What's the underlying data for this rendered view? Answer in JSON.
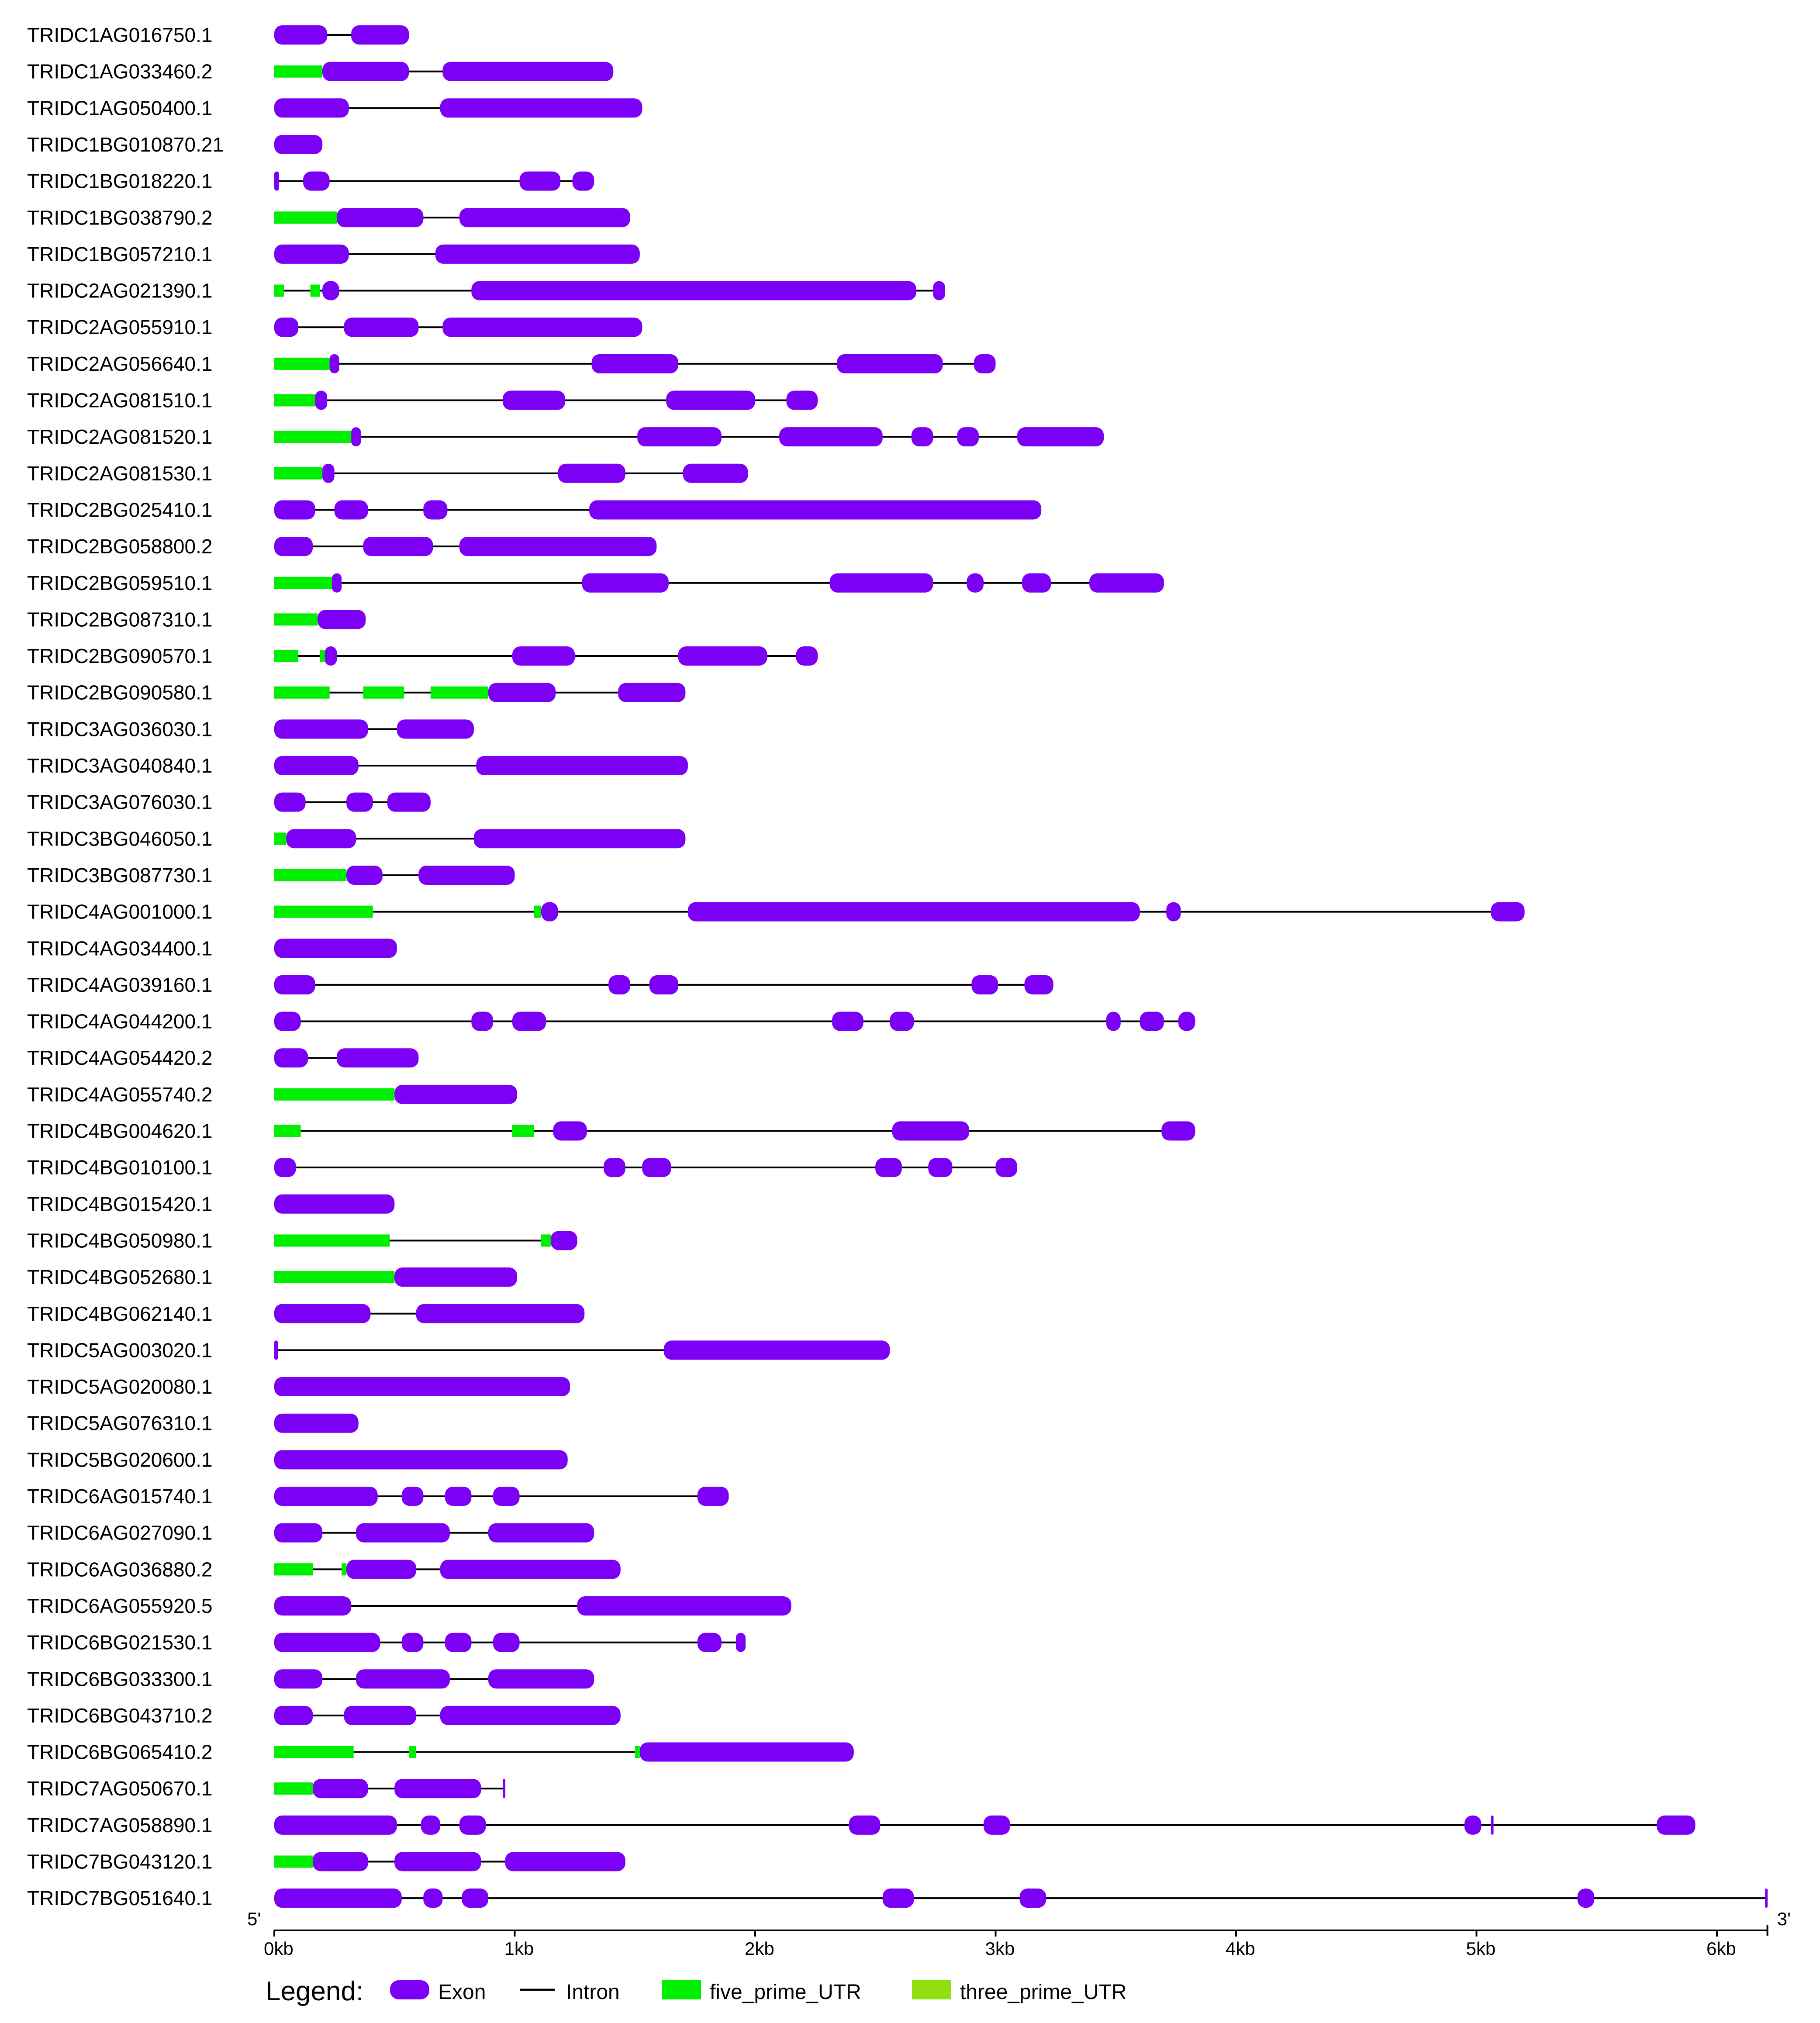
{
  "colors": {
    "exon": "#7b00f5",
    "intron": "#000000",
    "five_prime_UTR": "#00ee00",
    "three_prime_UTR": "#90e010"
  },
  "axis": {
    "five_end": "5'",
    "three_end": "3'",
    "ticks": [
      {
        "value": 0,
        "label": "0kb"
      },
      {
        "value": 1000,
        "label": "1kb"
      },
      {
        "value": 2000,
        "label": "2kb"
      },
      {
        "value": 3000,
        "label": "3kb"
      },
      {
        "value": 4000,
        "label": "4kb"
      },
      {
        "value": 5000,
        "label": "5kb"
      },
      {
        "value": 6000,
        "label": "6kb"
      }
    ],
    "max": 6210
  },
  "legend": {
    "title": "Legend:",
    "exon": "Exon",
    "intron": "Intron",
    "five_prime_UTR": "five_prime_UTR",
    "three_prime_UTR": "three_prime_UTR"
  },
  "genes": [
    {
      "name": "TRIDC1AG016750.1",
      "length": 560,
      "exons": [
        [
          0,
          220
        ],
        [
          320,
          560
        ]
      ],
      "utr5": []
    },
    {
      "name": "TRIDC1AG033460.2",
      "length": 1410,
      "exons": [
        [
          200,
          560
        ],
        [
          700,
          1410
        ]
      ],
      "utr5": [
        [
          0,
          200
        ]
      ]
    },
    {
      "name": "TRIDC1AG050400.1",
      "length": 1530,
      "exons": [
        [
          0,
          310
        ],
        [
          690,
          1530
        ]
      ],
      "utr5": []
    },
    {
      "name": "TRIDC1BG010870.21",
      "length": 200,
      "exons": [
        [
          0,
          200
        ]
      ],
      "utr5": []
    },
    {
      "name": "TRIDC1BG018220.1",
      "length": 1330,
      "exons": [
        [
          0,
          20
        ],
        [
          120,
          230
        ],
        [
          1020,
          1190
        ],
        [
          1240,
          1330
        ]
      ],
      "utr5": []
    },
    {
      "name": "TRIDC1BG038790.2",
      "length": 1480,
      "exons": [
        [
          260,
          620
        ],
        [
          770,
          1480
        ]
      ],
      "utr5": [
        [
          0,
          260
        ]
      ]
    },
    {
      "name": "TRIDC1BG057210.1",
      "length": 1520,
      "exons": [
        [
          0,
          310
        ],
        [
          670,
          1520
        ]
      ],
      "utr5": []
    },
    {
      "name": "TRIDC2AG021390.1",
      "length": 2790,
      "exons": [
        [
          200,
          270
        ],
        [
          820,
          2670
        ],
        [
          2740,
          2790
        ]
      ],
      "utr5": [
        [
          0,
          40
        ],
        [
          150,
          190
        ]
      ]
    },
    {
      "name": "TRIDC2AG055910.1",
      "length": 1530,
      "exons": [
        [
          0,
          100
        ],
        [
          290,
          600
        ],
        [
          700,
          1530
        ]
      ],
      "utr5": []
    },
    {
      "name": "TRIDC2AG056640.1",
      "length": 3000,
      "exons": [
        [
          230,
          270
        ],
        [
          1320,
          1680
        ],
        [
          2340,
          2780
        ],
        [
          2910,
          3000
        ]
      ],
      "utr5": [
        [
          0,
          230
        ]
      ]
    },
    {
      "name": "TRIDC2AG081510.1",
      "length": 2260,
      "exons": [
        [
          170,
          220
        ],
        [
          950,
          1210
        ],
        [
          1630,
          2000
        ],
        [
          2130,
          2260
        ]
      ],
      "utr5": [
        [
          0,
          170
        ]
      ]
    },
    {
      "name": "TRIDC2AG081520.1",
      "length": 3450,
      "exons": [
        [
          320,
          360
        ],
        [
          1510,
          1860
        ],
        [
          2100,
          2530
        ],
        [
          2650,
          2740
        ],
        [
          2840,
          2930
        ],
        [
          3090,
          3450
        ]
      ],
      "utr5": [
        [
          0,
          320
        ]
      ]
    },
    {
      "name": "TRIDC2AG081530.1",
      "length": 1970,
      "exons": [
        [
          200,
          250
        ],
        [
          1180,
          1460
        ],
        [
          1700,
          1970
        ]
      ],
      "utr5": [
        [
          0,
          200
        ]
      ]
    },
    {
      "name": "TRIDC2BG025410.1",
      "length": 3190,
      "exons": [
        [
          0,
          170
        ],
        [
          250,
          390
        ],
        [
          620,
          720
        ],
        [
          1310,
          3190
        ]
      ],
      "utr5": []
    },
    {
      "name": "TRIDC2BG058800.2",
      "length": 1590,
      "exons": [
        [
          0,
          160
        ],
        [
          370,
          660
        ],
        [
          770,
          1590
        ]
      ],
      "utr5": []
    },
    {
      "name": "TRIDC2BG059510.1",
      "length": 3700,
      "exons": [
        [
          240,
          280
        ],
        [
          1280,
          1640
        ],
        [
          2310,
          2740
        ],
        [
          2880,
          2950
        ],
        [
          3110,
          3230
        ],
        [
          3390,
          3700
        ]
      ],
      "utr5": [
        [
          0,
          240
        ]
      ]
    },
    {
      "name": "TRIDC2BG087310.1",
      "length": 380,
      "exons": [
        [
          180,
          380
        ]
      ],
      "utr5": [
        [
          0,
          180
        ]
      ]
    },
    {
      "name": "TRIDC2BG090570.1",
      "length": 2260,
      "exons": [
        [
          210,
          260
        ],
        [
          990,
          1250
        ],
        [
          1680,
          2050
        ],
        [
          2170,
          2260
        ]
      ],
      "utr5": [
        [
          0,
          100
        ],
        [
          190,
          210
        ]
      ]
    },
    {
      "name": "TRIDC2BG090580.1",
      "length": 1710,
      "exons": [
        [
          890,
          1170
        ],
        [
          1430,
          1710
        ]
      ],
      "utr5": [
        [
          0,
          230
        ],
        [
          370,
          540
        ],
        [
          650,
          890
        ]
      ]
    },
    {
      "name": "TRIDC3AG036030.1",
      "length": 830,
      "exons": [
        [
          0,
          390
        ],
        [
          510,
          830
        ]
      ],
      "utr5": []
    },
    {
      "name": "TRIDC3AG040840.1",
      "length": 1720,
      "exons": [
        [
          0,
          350
        ],
        [
          840,
          1720
        ]
      ],
      "utr5": []
    },
    {
      "name": "TRIDC3AG076030.1",
      "length": 650,
      "exons": [
        [
          0,
          130
        ],
        [
          300,
          410
        ],
        [
          470,
          650
        ]
      ],
      "utr5": []
    },
    {
      "name": "TRIDC3BG046050.1",
      "length": 1710,
      "exons": [
        [
          50,
          340
        ],
        [
          830,
          1710
        ]
      ],
      "utr5": [
        [
          0,
          50
        ]
      ]
    },
    {
      "name": "TRIDC3BG087730.1",
      "length": 1000,
      "exons": [
        [
          300,
          450
        ],
        [
          600,
          1000
        ]
      ],
      "utr5": [
        [
          0,
          300
        ]
      ]
    },
    {
      "name": "TRIDC4AG001000.1",
      "length": 5200,
      "exons": [
        [
          1110,
          1180
        ],
        [
          1720,
          3600
        ],
        [
          3710,
          3770
        ],
        [
          5060,
          5200
        ]
      ],
      "utr5": [
        [
          0,
          410
        ],
        [
          1080,
          1110
        ]
      ]
    },
    {
      "name": "TRIDC4AG034400.1",
      "length": 510,
      "exons": [
        [
          0,
          510
        ]
      ],
      "utr5": []
    },
    {
      "name": "TRIDC4AG039160.1",
      "length": 3240,
      "exons": [
        [
          0,
          170
        ],
        [
          1390,
          1480
        ],
        [
          1560,
          1680
        ],
        [
          2900,
          3010
        ],
        [
          3120,
          3240
        ]
      ],
      "utr5": []
    },
    {
      "name": "TRIDC4AG044200.1",
      "length": 3830,
      "exons": [
        [
          0,
          110
        ],
        [
          820,
          910
        ],
        [
          990,
          1130
        ],
        [
          2320,
          2450
        ],
        [
          2560,
          2660
        ],
        [
          3460,
          3520
        ],
        [
          3600,
          3700
        ],
        [
          3760,
          3830
        ]
      ],
      "utr5": []
    },
    {
      "name": "TRIDC4AG054420.2",
      "length": 600,
      "exons": [
        [
          0,
          140
        ],
        [
          260,
          600
        ]
      ],
      "utr5": []
    },
    {
      "name": "TRIDC4AG055740.2",
      "length": 1010,
      "exons": [
        [
          500,
          1010
        ]
      ],
      "utr5": [
        [
          0,
          500
        ]
      ]
    },
    {
      "name": "TRIDC4BG004620.1",
      "length": 3830,
      "exons": [
        [
          1160,
          1300
        ],
        [
          2570,
          2890
        ],
        [
          3690,
          3830
        ]
      ],
      "utr5": [
        [
          0,
          110
        ],
        [
          990,
          1080
        ]
      ]
    },
    {
      "name": "TRIDC4BG010100.1",
      "length": 3090,
      "exons": [
        [
          0,
          90
        ],
        [
          1370,
          1460
        ],
        [
          1530,
          1650
        ],
        [
          2500,
          2610
        ],
        [
          2720,
          2820
        ],
        [
          3000,
          3090
        ]
      ],
      "utr5": []
    },
    {
      "name": "TRIDC4BG015420.1",
      "length": 500,
      "exons": [
        [
          0,
          500
        ]
      ],
      "utr5": []
    },
    {
      "name": "TRIDC4BG050980.1",
      "length": 1260,
      "exons": [
        [
          1150,
          1260
        ]
      ],
      "utr5": [
        [
          0,
          480
        ],
        [
          1110,
          1150
        ]
      ]
    },
    {
      "name": "TRIDC4BG052680.1",
      "length": 1010,
      "exons": [
        [
          500,
          1010
        ]
      ],
      "utr5": [
        [
          0,
          500
        ]
      ]
    },
    {
      "name": "TRIDC4BG062140.1",
      "length": 1290,
      "exons": [
        [
          0,
          400
        ],
        [
          590,
          1290
        ]
      ],
      "utr5": []
    },
    {
      "name": "TRIDC5AG003020.1",
      "length": 2560,
      "exons": [
        [
          0,
          15
        ],
        [
          1620,
          2560
        ]
      ],
      "utr5": []
    },
    {
      "name": "TRIDC5AG020080.1",
      "length": 1230,
      "exons": [
        [
          0,
          1230
        ]
      ],
      "utr5": []
    },
    {
      "name": "TRIDC5AG076310.1",
      "length": 350,
      "exons": [
        [
          0,
          350
        ]
      ],
      "utr5": []
    },
    {
      "name": "TRIDC5BG020600.1",
      "length": 1220,
      "exons": [
        [
          0,
          1220
        ]
      ],
      "utr5": []
    },
    {
      "name": "TRIDC6AG015740.1",
      "length": 1890,
      "exons": [
        [
          0,
          430
        ],
        [
          530,
          620
        ],
        [
          710,
          820
        ],
        [
          910,
          1020
        ],
        [
          1760,
          1890
        ]
      ],
      "utr5": []
    },
    {
      "name": "TRIDC6AG027090.1",
      "length": 1330,
      "exons": [
        [
          0,
          200
        ],
        [
          340,
          730
        ],
        [
          890,
          1330
        ]
      ],
      "utr5": []
    },
    {
      "name": "TRIDC6AG036880.2",
      "length": 1440,
      "exons": [
        [
          300,
          590
        ],
        [
          690,
          1440
        ]
      ],
      "utr5": [
        [
          0,
          160
        ],
        [
          280,
          300
        ]
      ]
    },
    {
      "name": "TRIDC6AG055920.5",
      "length": 2150,
      "exons": [
        [
          0,
          320
        ],
        [
          1260,
          2150
        ]
      ],
      "utr5": []
    },
    {
      "name": "TRIDC6BG021530.1",
      "length": 1960,
      "exons": [
        [
          0,
          440
        ],
        [
          530,
          620
        ],
        [
          710,
          820
        ],
        [
          910,
          1020
        ],
        [
          1760,
          1860
        ],
        [
          1920,
          1960
        ]
      ],
      "utr5": []
    },
    {
      "name": "TRIDC6BG033300.1",
      "length": 1330,
      "exons": [
        [
          0,
          200
        ],
        [
          340,
          730
        ],
        [
          890,
          1330
        ]
      ],
      "utr5": []
    },
    {
      "name": "TRIDC6BG043710.2",
      "length": 1440,
      "exons": [
        [
          0,
          160
        ],
        [
          290,
          590
        ],
        [
          690,
          1440
        ]
      ],
      "utr5": []
    },
    {
      "name": "TRIDC6BG065410.2",
      "length": 2410,
      "exons": [
        [
          1520,
          2410
        ]
      ],
      "utr5": [
        [
          0,
          330
        ],
        [
          560,
          590
        ],
        [
          1500,
          1520
        ]
      ]
    },
    {
      "name": "TRIDC7AG050670.1",
      "length": 960,
      "exons": [
        [
          160,
          390
        ],
        [
          500,
          860
        ],
        [
          950,
          960
        ]
      ],
      "utr5": [
        [
          0,
          160
        ]
      ]
    },
    {
      "name": "TRIDC7AG058890.1",
      "length": 5910,
      "exons": [
        [
          0,
          510
        ],
        [
          610,
          690
        ],
        [
          770,
          880
        ],
        [
          2390,
          2520
        ],
        [
          2950,
          3060
        ],
        [
          4950,
          5020
        ],
        [
          5060,
          5070
        ],
        [
          5750,
          5910
        ]
      ],
      "utr5": []
    },
    {
      "name": "TRIDC7BG043120.1",
      "length": 1460,
      "exons": [
        [
          160,
          390
        ],
        [
          500,
          860
        ],
        [
          960,
          1460
        ]
      ],
      "utr5": [
        [
          0,
          160
        ]
      ]
    },
    {
      "name": "TRIDC7BG051640.1",
      "length": 6210,
      "exons": [
        [
          0,
          530
        ],
        [
          620,
          700
        ],
        [
          780,
          890
        ],
        [
          2530,
          2660
        ],
        [
          3100,
          3210
        ],
        [
          5420,
          5490
        ],
        [
          6200,
          6210
        ]
      ],
      "utr5": []
    }
  ]
}
